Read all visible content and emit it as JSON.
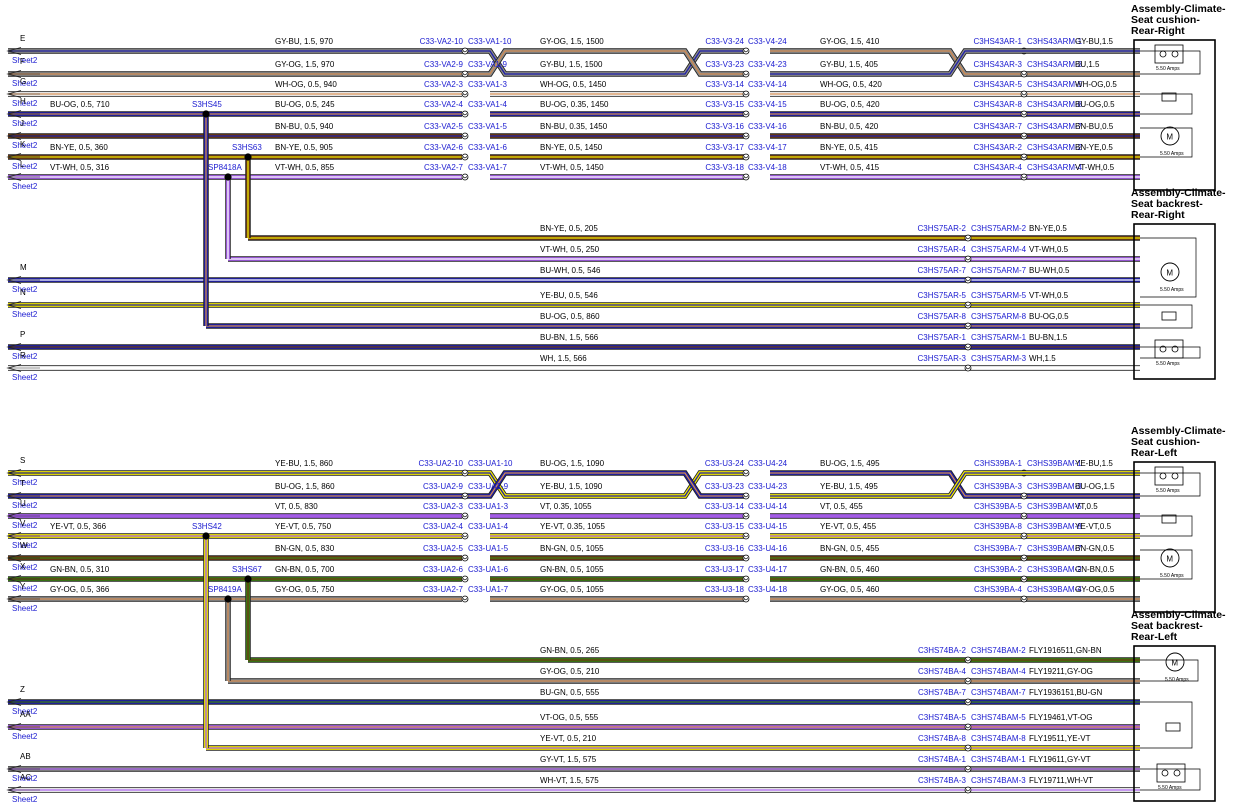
{
  "sheet_ref": "Sheet2",
  "fuse_rating": "5.50 Amps",
  "colors": {
    "BU": "#1f1fa8",
    "OG": "#d08a50",
    "GN": "#3c7d12",
    "YE": "#f2ea00",
    "VT": "#a35ce6",
    "BN": "#6b3a12",
    "WH": "#ffffff",
    "GY": "#8a8a8a",
    "RD": "#e0225a",
    "teal": "#1e6b82",
    "connector_text": "#1a1ad0"
  },
  "sections": [
    {
      "name": "right",
      "offset_y": 0,
      "assemblies": [
        {
          "title": [
            "Assembly-Climate-",
            "Seat cushion-",
            "Rear-Right"
          ]
        },
        {
          "title": [
            "Assembly-Climate-",
            "Seat backrest-",
            "Rear-Right"
          ]
        }
      ],
      "splice_labels": [
        {
          "text": "S3HS45"
        },
        {
          "text": "S3HS63"
        },
        {
          "text": "SP8418A"
        }
      ],
      "upper_wires": [
        {
          "letter": "E",
          "cable1": "GY-BU,  1.5,  970",
          "left": "C33-VA2-10",
          "right": "C33-VA1-10",
          "cable2": "GY-OG,  1.5,  1500",
          "c3l": "C33-V3-24",
          "c3r": "C33-V4-24",
          "cable3": "GY-OG,  1.5,  410",
          "end_left": "C3HS43AR-1",
          "end_right": "C3HS43ARM-1",
          "end_cable": "GY-BU,1.5",
          "crossing": true
        },
        {
          "letter": "F",
          "cable1": "GY-OG,  1.5,  970",
          "left": "C33-VA2-9",
          "right": "C33-VA1-9",
          "cable2": "GY-BU,  1.5,  1500",
          "c3l": "C33-V3-23",
          "c3r": "C33-V4-23",
          "cable3": "GY-BU,  1.5,  405",
          "end_left": "C3HS43AR-3",
          "end_right": "C3HS43ARM-3",
          "end_cable": "BU,1.5",
          "crossing": true
        },
        {
          "letter": "G",
          "cable1": "WH-OG,  0.5,  940",
          "left": "C33-VA2-3",
          "right": "C33-VA1-3",
          "cable2": "WH-OG,  0.5,  1450",
          "c3l": "C33-V3-14",
          "c3r": "C33-V4-14",
          "cable3": "WH-OG,  0.5,  420",
          "end_left": "C3HS43AR-5",
          "end_right": "C3HS43ARM-5",
          "end_cable": "WH-OG,0.5"
        },
        {
          "letter": "H",
          "pre": "BU-OG,  0.5,  710",
          "cable1": "BU-OG,  0.5,  245",
          "left": "C33-VA2-4",
          "right": "C33-VA1-4",
          "cable2": "BU-OG,  0.35,  1450",
          "c3l": "C33-V3-15",
          "c3r": "C33-V4-15",
          "cable3": "BU-OG,  0.5,  420",
          "end_left": "C3HS43AR-8",
          "end_right": "C3HS43ARM-8",
          "end_cable": "BU-OG,0.5"
        },
        {
          "letter": "J",
          "cable1": "BN-BU,  0.5,  940",
          "left": "C33-VA2-5",
          "right": "C33-VA1-5",
          "cable2": "BN-BU,  0.35,  1450",
          "c3l": "C33-V3-16",
          "c3r": "C33-V4-16",
          "cable3": "BN-BU,  0.5,  420",
          "end_left": "C3HS43AR-7",
          "end_right": "C3HS43ARM-7",
          "end_cable": "BN-BU,0.5"
        },
        {
          "letter": "K",
          "pre": "BN-YE,  0.5,  360",
          "cable1": "BN-YE,  0.5,  905",
          "left": "C33-VA2-6",
          "right": "C33-VA1-6",
          "cable2": "BN-YE,  0.5,  1450",
          "c3l": "C33-V3-17",
          "c3r": "C33-V4-17",
          "cable3": "BN-YE,  0.5,  415",
          "end_left": "C3HS43AR-2",
          "end_right": "C3HS43ARM-2",
          "end_cable": "BN-YE,0.5"
        },
        {
          "letter": "L",
          "pre": "VT-WH,  0.5,  316",
          "cable1": "VT-WH,  0.5,  855",
          "left": "C33-VA2-7",
          "right": "C33-VA1-7",
          "cable2": "VT-WH,  0.5,  1450",
          "c3l": "C33-V3-18",
          "c3r": "C33-V4-18",
          "cable3": "VT-WH,  0.5,  415",
          "end_left": "C3HS43AR-4",
          "end_right": "C3HS43ARM-4",
          "end_cable": "VT-WH,0.5"
        }
      ],
      "lower_wires": [
        {
          "letter": "",
          "cable": "BN-YE,  0.5,  205",
          "left": "C3HS75AR-2",
          "right": "C3HS75ARM-2",
          "end": "BN-YE,0.5"
        },
        {
          "letter": "",
          "cable": "VT-WH,  0.5,  250",
          "left": "C3HS75AR-4",
          "right": "C3HS75ARM-4",
          "end": "VT-WH,0.5"
        },
        {
          "letter": "M",
          "cable": "BU-WH,  0.5,  546",
          "left": "C3HS75AR-7",
          "right": "C3HS75ARM-7",
          "end": "BU-WH,0.5"
        },
        {
          "letter": "N",
          "cable": "YE-BU,  0.5,  546",
          "left": "C3HS75AR-5",
          "right": "C3HS75ARM-5",
          "end": "VT-WH,0.5"
        },
        {
          "letter": "",
          "cable": "BU-OG,  0.5,  860",
          "left": "C3HS75AR-8",
          "right": "C3HS75ARM-8",
          "end": "BU-OG,0.5"
        },
        {
          "letter": "P",
          "cable": "BU-BN,  1.5,  566",
          "left": "C3HS75AR-1",
          "right": "C3HS75ARM-1",
          "end": "BU-BN,1.5"
        },
        {
          "letter": "R",
          "cable": "WH,  1.5,  566",
          "left": "C3HS75AR-3",
          "right": "C3HS75ARM-3",
          "end": "WH,1.5"
        }
      ]
    },
    {
      "name": "left",
      "offset_y": 422,
      "assemblies": [
        {
          "title": [
            "Assembly-Climate-",
            "Seat cushion-",
            "Rear-Left"
          ]
        },
        {
          "title": [
            "Assembly-Climate-",
            "Seat backrest-",
            "Rear-Left"
          ]
        }
      ],
      "splice_labels": [
        {
          "text": "S3HS42"
        },
        {
          "text": "S3HS67"
        },
        {
          "text": "SP8419A"
        }
      ],
      "upper_wires": [
        {
          "letter": "S",
          "cable1": "YE-BU,  1.5,  860",
          "left": "C33-UA2-10",
          "right": "C33-UA1-10",
          "cable2": "BU-OG,  1.5,  1090",
          "c3l": "C33-U3-24",
          "c3r": "C33-U4-24",
          "cable3": "BU-OG,  1.5,  495",
          "end_left": "C3HS39BA-1",
          "end_right": "C3HS39BAM-1",
          "end_cable": "YE-BU,1.5",
          "crossing": true
        },
        {
          "letter": "T",
          "cable1": "BU-OG,  1.5,  860",
          "left": "C33-UA2-9",
          "right": "C33-UA1-9",
          "cable2": "YE-BU,  1.5,  1090",
          "c3l": "C33-U3-23",
          "c3r": "C33-U4-23",
          "cable3": "YE-BU,  1.5,  495",
          "end_left": "C3HS39BA-3",
          "end_right": "C3HS39BAM-3",
          "end_cable": "BU-OG,1.5",
          "crossing": true
        },
        {
          "letter": "U",
          "cable1": "VT,  0.5,  830",
          "left": "C33-UA2-3",
          "right": "C33-UA1-3",
          "cable2": "VT,  0.35,  1055",
          "c3l": "C33-U3-14",
          "c3r": "C33-U4-14",
          "cable3": "VT,  0.5,  455",
          "end_left": "C3HS39BA-5",
          "end_right": "C3HS39BAM-5",
          "end_cable": "VT,0.5"
        },
        {
          "letter": "V",
          "pre": "YE-VT,  0.5,  366",
          "cable1": "YE-VT,  0.5,  750",
          "left": "C33-UA2-4",
          "right": "C33-UA1-4",
          "cable2": "YE-VT,  0.35,  1055",
          "c3l": "C33-U3-15",
          "c3r": "C33-U4-15",
          "cable3": "YE-VT,  0.5,  455",
          "end_left": "C3HS39BA-8",
          "end_right": "C3HS39BAM-8",
          "end_cable": "YE-VT,0.5"
        },
        {
          "letter": "W",
          "cable1": "BN-GN,  0.5,  830",
          "left": "C33-UA2-5",
          "right": "C33-UA1-5",
          "cable2": "BN-GN,  0.5,  1055",
          "c3l": "C33-U3-16",
          "c3r": "C33-U4-16",
          "cable3": "BN-GN,  0.5,  455",
          "end_left": "C3HS39BA-7",
          "end_right": "C3HS39BAM-7",
          "end_cable": "BN-GN,0.5"
        },
        {
          "letter": "X",
          "pre": "GN-BN,  0.5,  310",
          "cable1": "GN-BN,  0.5,  700",
          "left": "C33-UA2-6",
          "right": "C33-UA1-6",
          "cable2": "GN-BN,  0.5,  1055",
          "c3l": "C33-U3-17",
          "c3r": "C33-U4-17",
          "cable3": "GN-BN,  0.5,  460",
          "end_left": "C3HS39BA-2",
          "end_right": "C3HS39BAM-2",
          "end_cable": "GN-BN,0.5"
        },
        {
          "letter": "Y",
          "pre": "GY-OG,  0.5,  366",
          "cable1": "GY-OG,  0.5,  750",
          "left": "C33-UA2-7",
          "right": "C33-UA1-7",
          "cable2": "GY-OG,  0.5,  1055",
          "c3l": "C33-U3-18",
          "c3r": "C33-U4-18",
          "cable3": "GY-OG,  0.5,  460",
          "end_left": "C3HS39BA-4",
          "end_right": "C3HS39BAM-4",
          "end_cable": "GY-OG,0.5"
        }
      ],
      "lower_wires": [
        {
          "letter": "",
          "cable": "GN-BN,  0.5,  265",
          "left": "C3HS74BA-2",
          "right": "C3HS74BAM-2",
          "end": "FLY1916511,GN-BN"
        },
        {
          "letter": "",
          "cable": "GY-OG,  0.5,  210",
          "left": "C3HS74BA-4",
          "right": "C3HS74BAM-4",
          "end": "FLY19211,GY-OG"
        },
        {
          "letter": "Z",
          "cable": "BU-GN,  0.5,  555",
          "left": "C3HS74BA-7",
          "right": "C3HS74BAM-7",
          "end": "FLY1936151,BU-GN"
        },
        {
          "letter": "AA",
          "cable": "VT-OG,  0.5,  555",
          "left": "C3HS74BA-5",
          "right": "C3HS74BAM-5",
          "end": "FLY19461,VT-OG"
        },
        {
          "letter": "",
          "cable": "YE-VT,  0.5,  210",
          "left": "C3HS74BA-8",
          "right": "C3HS74BAM-8",
          "end": "FLY19511,YE-VT"
        },
        {
          "letter": "AB",
          "cable": "GY-VT,  1.5,  575",
          "left": "C3HS74BA-1",
          "right": "C3HS74BAM-1",
          "end": "FLY19611,GY-VT"
        },
        {
          "letter": "AC",
          "cable": "WH-VT,  1.5,  575",
          "left": "C3HS74BA-3",
          "right": "C3HS74BAM-3",
          "end": "FLY19711,WH-VT"
        }
      ]
    }
  ]
}
